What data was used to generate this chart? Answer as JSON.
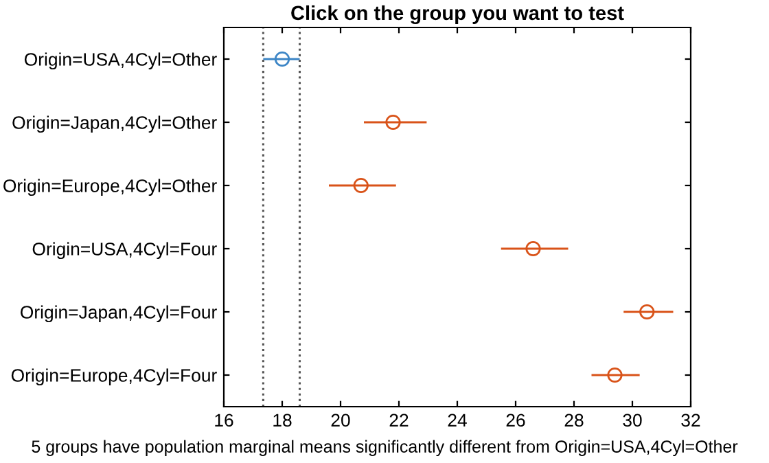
{
  "chart_data": {
    "type": "scatter",
    "orientation": "horizontal",
    "title": "Click on the group you want to test",
    "xlabel": "5 groups have population marginal means significantly different from Origin=USA,4Cyl=Other",
    "categories": [
      "Origin=USA,4Cyl=Other",
      "Origin=Japan,4Cyl=Other",
      "Origin=Europe,4Cyl=Other",
      "Origin=USA,4Cyl=Four",
      "Origin=Japan,4Cyl=Four",
      "Origin=Europe,4Cyl=Four"
    ],
    "values": [
      18.0,
      21.8,
      20.7,
      26.6,
      30.5,
      29.4
    ],
    "errors": [
      [
        17.35,
        18.6
      ],
      [
        20.8,
        22.95
      ],
      [
        19.6,
        21.9
      ],
      [
        25.5,
        27.8
      ],
      [
        29.7,
        31.4
      ],
      [
        28.6,
        30.25
      ]
    ],
    "colors": [
      "#3d86c6",
      "#d95319",
      "#d95319",
      "#d95319",
      "#d95319",
      "#d95319"
    ],
    "marker": "circle",
    "xlim": [
      16,
      32
    ],
    "xticks": [
      16,
      18,
      20,
      22,
      24,
      26,
      28,
      30,
      32
    ],
    "ref_lines": [
      {
        "axis": "x",
        "value": 17.35,
        "color": "#555555",
        "line_style": "dotted"
      },
      {
        "axis": "x",
        "value": 18.6,
        "color": "#555555",
        "line_style": "dotted"
      }
    ],
    "grid": false
  }
}
